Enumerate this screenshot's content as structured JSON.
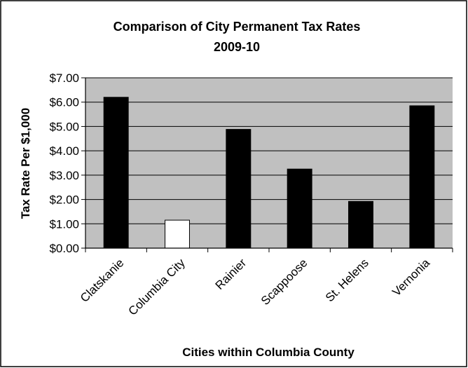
{
  "chart_data": {
    "type": "bar",
    "title": "Comparison of City Permanent Tax Rates",
    "subtitle": "2009-10",
    "xlabel": "Cities within Columbia County",
    "ylabel": "Tax Rate Per $1,000",
    "categories": [
      "Clatskanie",
      "Columbia City",
      "Rainier",
      "Scappoose",
      "St. Helens",
      "Vernonia"
    ],
    "values": [
      6.2,
      1.15,
      4.88,
      3.25,
      1.92,
      5.85
    ],
    "bar_colors": [
      "#000000",
      "#ffffff",
      "#000000",
      "#000000",
      "#000000",
      "#000000"
    ],
    "ylim": [
      0,
      7
    ],
    "yticks": [
      0,
      1,
      2,
      3,
      4,
      5,
      6,
      7
    ],
    "ytick_labels": [
      "$0.00",
      "$1.00",
      "$2.00",
      "$3.00",
      "$4.00",
      "$5.00",
      "$6.00",
      "$7.00"
    ],
    "grid": true,
    "plot_background": "#c0c0c0",
    "legend": "none"
  }
}
